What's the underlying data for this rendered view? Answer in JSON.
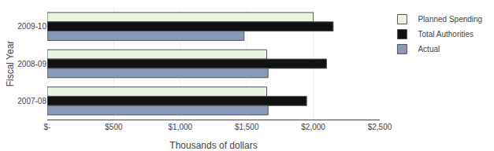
{
  "chart_data": {
    "type": "bar",
    "orientation": "horizontal",
    "categories": [
      "2009-10",
      "2008-09",
      "2007-08"
    ],
    "series": [
      {
        "name": "Planned Spending",
        "color": "#e8f5e0",
        "values": [
          2000,
          1650,
          1650
        ]
      },
      {
        "name": "Total Authorities",
        "color": "#111111",
        "values": [
          2150,
          2100,
          1950
        ]
      },
      {
        "name": "Actual",
        "color": "#8899bb",
        "values": [
          1480,
          1660,
          1660
        ]
      }
    ],
    "xlabel": "Thousands of dollars",
    "ylabel": "Fiscal Year",
    "xlim": [
      0,
      2500
    ],
    "xticks": [
      {
        "value": 0,
        "label": "$-"
      },
      {
        "value": 500,
        "label": "$500"
      },
      {
        "value": 1000,
        "label": "$1,000"
      },
      {
        "value": 1500,
        "label": "$1,500"
      },
      {
        "value": 2000,
        "label": "$2,000"
      },
      {
        "value": 2500,
        "label": "$2,500"
      }
    ],
    "grid": true,
    "legend": "right"
  }
}
